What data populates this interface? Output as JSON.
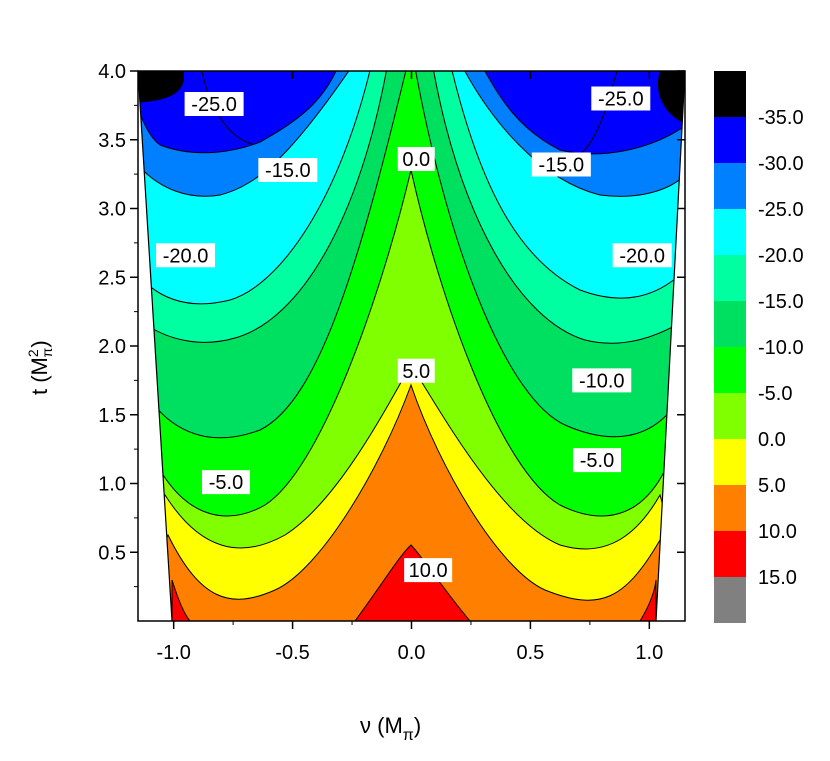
{
  "chart_data": {
    "type": "contour",
    "xlabel": "ν  (M",
    "xlabel_sub": "π",
    "xlabel_close": ")",
    "ylabel": "t  (M",
    "ylabel_sup": "2",
    "ylabel_sub": "π",
    "ylabel_close": ")",
    "xlim": [
      -1.15,
      1.15
    ],
    "ylim": [
      0,
      4.0
    ],
    "x_ticks": [
      -1.0,
      -0.5,
      0.0,
      0.5,
      1.0
    ],
    "x_tick_labels": [
      "-1.0",
      "-0.5",
      "0.0",
      "0.5",
      "1.0"
    ],
    "y_ticks": [
      0.5,
      1.0,
      1.5,
      2.0,
      2.5,
      3.0,
      3.5,
      4.0
    ],
    "y_tick_labels": [
      "0.5",
      "1.0",
      "1.5",
      "2.0",
      "2.5",
      "3.0",
      "3.5",
      "4.0"
    ],
    "contour_levels": [
      15.0,
      10.0,
      5.0,
      0.0,
      -5.0,
      -10.0,
      -15.0,
      -20.0,
      -25.0,
      -30.0,
      -35.0
    ],
    "contour_labels": [
      {
        "text": "-25.0",
        "x": -0.83,
        "y": 3.76
      },
      {
        "text": "-25.0",
        "x": 0.88,
        "y": 3.8
      },
      {
        "text": "0.0",
        "x": 0.02,
        "y": 3.36
      },
      {
        "text": "-15.0",
        "x": -0.52,
        "y": 3.28
      },
      {
        "text": "-15.0",
        "x": 0.63,
        "y": 3.32
      },
      {
        "text": "-20.0",
        "x": -0.95,
        "y": 2.66
      },
      {
        "text": "-20.0",
        "x": 0.97,
        "y": 2.66
      },
      {
        "text": "5.0",
        "x": 0.02,
        "y": 1.82
      },
      {
        "text": "-10.0",
        "x": 0.8,
        "y": 1.75
      },
      {
        "text": "-5.0",
        "x": -0.78,
        "y": 1.01
      },
      {
        "text": "-5.0",
        "x": 0.78,
        "y": 1.17
      },
      {
        "text": "10.0",
        "x": 0.07,
        "y": 0.37
      }
    ],
    "legend": [
      {
        "label": "-35.0",
        "color": "#000000"
      },
      {
        "label": "-30.0",
        "color": "#0000ff"
      },
      {
        "label": "-25.0",
        "color": "#0080ff"
      },
      {
        "label": "-20.0",
        "color": "#00ffff"
      },
      {
        "label": "-15.0",
        "color": "#00ffa0"
      },
      {
        "label": "-10.0",
        "color": "#00e060"
      },
      {
        "label": "-5.0",
        "color": "#00ff00"
      },
      {
        "label": "0.0",
        "color": "#80ff00"
      },
      {
        "label": "5.0",
        "color": "#ffff00"
      },
      {
        "label": "10.0",
        "color": "#ff8000"
      },
      {
        "label": "15.0",
        "color": "#ff0000"
      },
      {
        "label": "",
        "color": "#808080"
      }
    ],
    "colors": {
      "c15": "#ff0000",
      "c10": "#ff8000",
      "c5": "#ffff00",
      "c0": "#80ff00",
      "cm5": "#00ff00",
      "cm10": "#00e060",
      "cm15": "#00ffa0",
      "cm20": "#00ffff",
      "cm25": "#0080ff",
      "cm30": "#0000ff",
      "cm35": "#000000",
      "nodata": "#808080"
    }
  }
}
